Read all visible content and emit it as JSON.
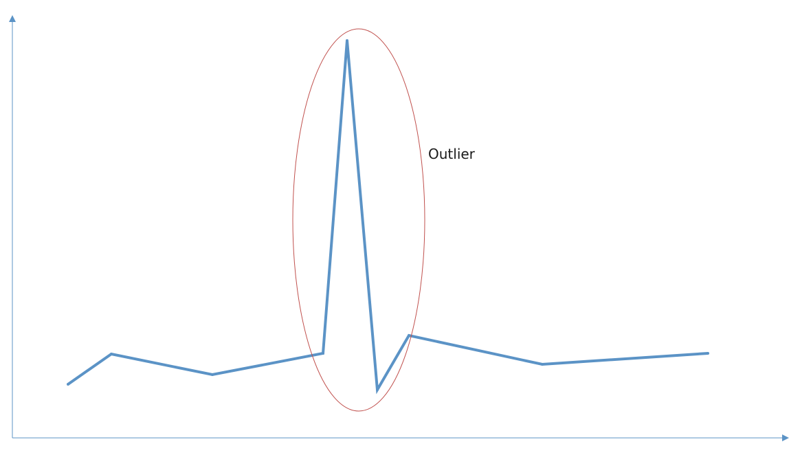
{
  "chart_data": {
    "type": "line",
    "title": "",
    "xlabel": "",
    "ylabel": "",
    "grid": false,
    "legend": "none",
    "x": [
      1,
      2,
      3,
      4,
      5,
      6,
      7,
      8,
      9
    ],
    "xlim": [
      0,
      10
    ],
    "ylim": [
      0,
      10
    ],
    "series": [
      {
        "color": "#5b93c6",
        "values": [
          1.3,
          2.1,
          1.6,
          2.2,
          10.3,
          1.2,
          2.7,
          1.9,
          2.2
        ]
      }
    ],
    "annotations": [
      {
        "text": "Outlier",
        "shape": "ellipse",
        "color": "#c0504d",
        "highlights_points": [
          4,
          5,
          6
        ]
      }
    ],
    "axis_color": "#5b93c6"
  }
}
